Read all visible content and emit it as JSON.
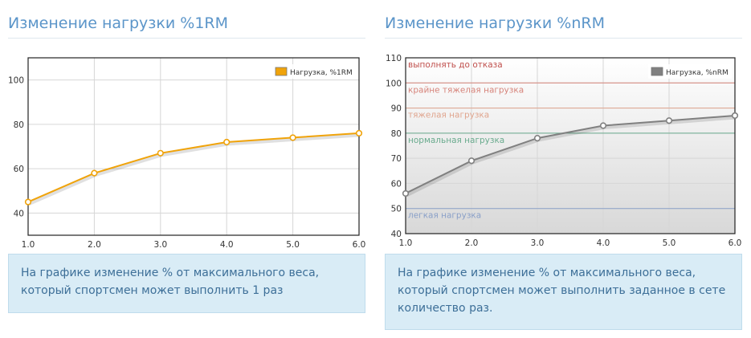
{
  "panels": [
    {
      "title": "Изменение нагрузки %1RM",
      "description": "На графике изменение % от максимального веса, который спортсмен может выполнить 1 раз"
    },
    {
      "title": "Изменение нагрузки %nRM",
      "description": "На графике изменение % от максимального веса, который спортсмен может выполнить заданное в сете количество раз."
    }
  ],
  "chart_data": [
    {
      "type": "line",
      "x": [
        1.0,
        2.0,
        3.0,
        4.0,
        5.0,
        6.0
      ],
      "x_tick_labels": [
        "1.0",
        "2.0",
        "3.0",
        "4.0",
        "5.0",
        "6.0"
      ],
      "xlim": [
        1.0,
        6.0
      ],
      "ylim": [
        30,
        110
      ],
      "y_ticks": [
        40,
        60,
        80,
        100
      ],
      "grid": true,
      "legend_position": "top-right",
      "series": [
        {
          "name": "Нагрузка, %1RM",
          "color": "#f0a30a",
          "values": [
            45,
            58,
            67,
            72,
            74,
            76
          ]
        }
      ]
    },
    {
      "type": "line",
      "x": [
        1.0,
        2.0,
        3.0,
        4.0,
        5.0,
        6.0
      ],
      "x_tick_labels": [
        "1.0",
        "2.0",
        "3.0",
        "4.0",
        "5.0",
        "6.0"
      ],
      "xlim": [
        1.0,
        6.0
      ],
      "ylim": [
        40,
        110
      ],
      "y_ticks": [
        40,
        50,
        60,
        70,
        80,
        90,
        100,
        110
      ],
      "grid": true,
      "legend_position": "top-right",
      "series": [
        {
          "name": "Нагрузка, %nRM",
          "color": "#808080",
          "values": [
            56,
            69,
            78,
            83,
            85,
            87
          ]
        }
      ],
      "zones": [
        {
          "label": "выполнять до отказа",
          "y": 110,
          "color": "#c0504d"
        },
        {
          "label": "крайне тяжелая нагрузка",
          "y": 100,
          "color": "#d6837a"
        },
        {
          "label": "тяжелая нагрузка",
          "y": 90,
          "color": "#e0a58e"
        },
        {
          "label": "нормальная нагрузка",
          "y": 80,
          "color": "#6aab8e"
        },
        {
          "label": "легкая нагрузка",
          "y": 50,
          "color": "#8aa0c8"
        }
      ]
    }
  ]
}
